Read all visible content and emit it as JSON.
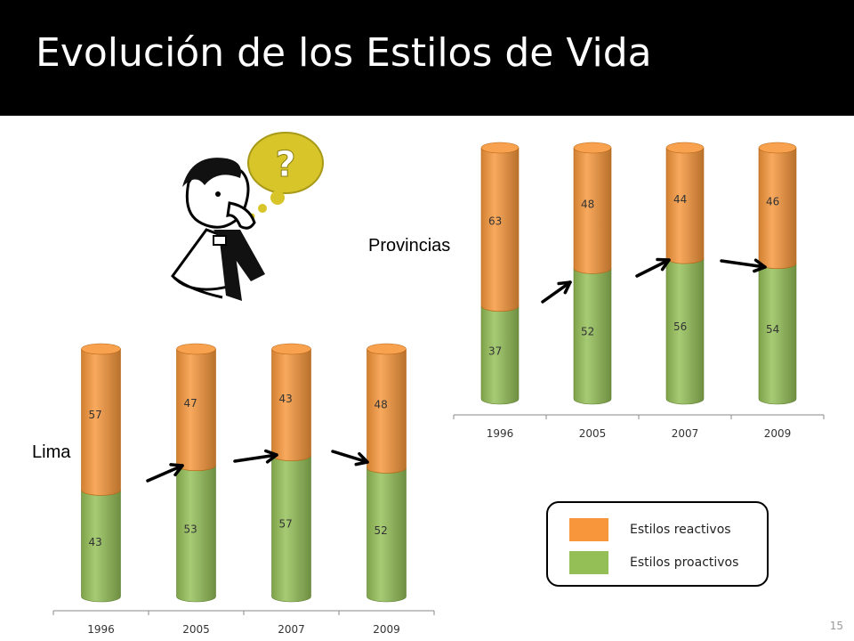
{
  "slide": {
    "title": "Evolución de los Estilos de Vida",
    "page_number": "15"
  },
  "colors": {
    "reactivo": "#F7963A",
    "proactivo": "#93BF56",
    "title_bg": "#000000"
  },
  "legend": {
    "items": [
      {
        "label": "Estilos reactivos",
        "color": "#F7963A"
      },
      {
        "label": "Estilos proactivos",
        "color": "#93BF56"
      }
    ]
  },
  "chart_data": [
    {
      "type": "bar",
      "stacked": true,
      "title": "Provincias",
      "categories": [
        "1996",
        "2005",
        "2007",
        "2009"
      ],
      "series": [
        {
          "name": "Estilos proactivos",
          "values": [
            37,
            52,
            56,
            54
          ]
        },
        {
          "name": "Estilos reactivos",
          "values": [
            63,
            48,
            44,
            46
          ]
        }
      ],
      "ylim": [
        0,
        100
      ]
    },
    {
      "type": "bar",
      "stacked": true,
      "title": "Lima",
      "categories": [
        "1996",
        "2005",
        "2007",
        "2009"
      ],
      "series": [
        {
          "name": "Estilos proactivos",
          "values": [
            43,
            53,
            57,
            52
          ]
        },
        {
          "name": "Estilos reactivos",
          "values": [
            57,
            47,
            43,
            48
          ]
        }
      ],
      "ylim": [
        0,
        100
      ]
    }
  ]
}
